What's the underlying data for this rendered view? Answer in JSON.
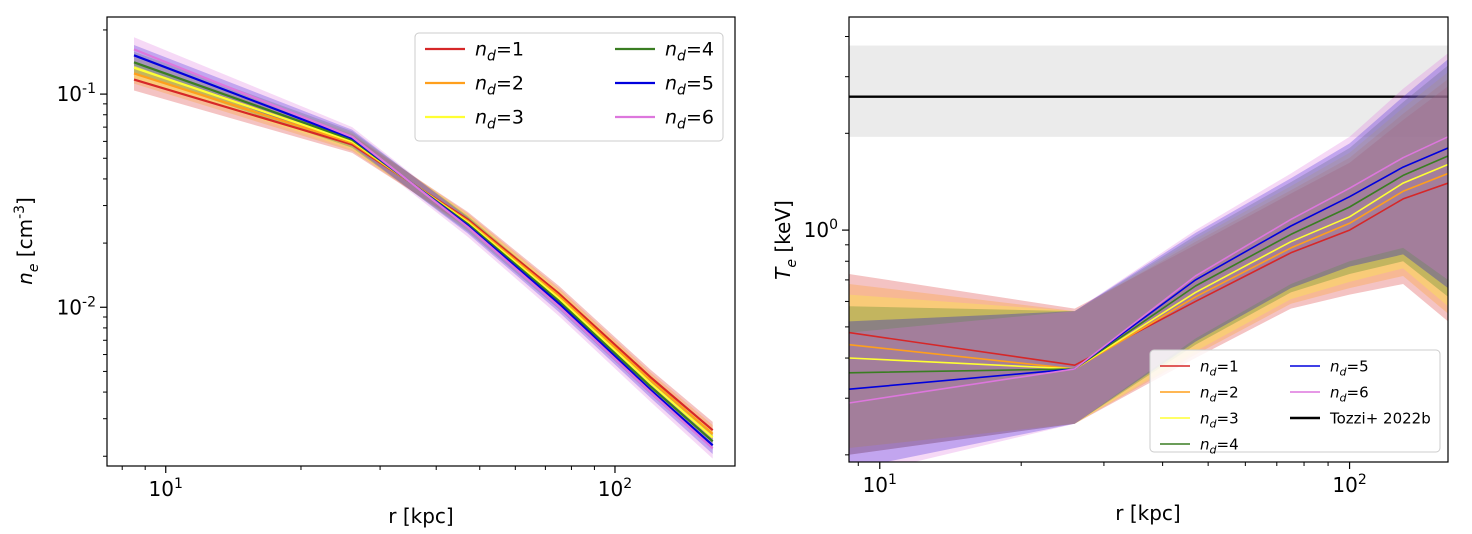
{
  "chart_data": [
    {
      "type": "line",
      "xlabel": "r [kpc]",
      "ylabel": "n_e [cm^-3]",
      "xscale": "log",
      "yscale": "log",
      "xlim": [
        7.4,
        185
      ],
      "ylim": [
        0.0018,
        0.23
      ],
      "xticks": [
        {
          "value": 10,
          "label": "10^1"
        },
        {
          "value": 100,
          "label": "10^2"
        }
      ],
      "yticks": [
        {
          "value": 0.1,
          "label": "10^-1"
        },
        {
          "value": 0.01,
          "label": "10^-2"
        }
      ],
      "grid": false,
      "legend": {
        "placement": "top-right",
        "columns": 2
      },
      "x": [
        8.5,
        26,
        47,
        75,
        120,
        165
      ],
      "series": [
        {
          "name": "n_d=1",
          "color": "#d62728",
          "values": [
            0.117,
            0.058,
            0.0258,
            0.0116,
            0.0047,
            0.00265
          ],
          "band_low": [
            0.104,
            0.053,
            0.0238,
            0.0107,
            0.0043,
            0.00242
          ],
          "band_high": [
            0.131,
            0.064,
            0.028,
            0.0126,
            0.0051,
            0.0029
          ]
        },
        {
          "name": "n_d=2",
          "color": "#ff9f1c",
          "values": [
            0.125,
            0.059,
            0.0254,
            0.0113,
            0.00455,
            0.00255
          ],
          "band_low": [
            0.112,
            0.054,
            0.0234,
            0.0104,
            0.00418,
            0.00233
          ],
          "band_high": [
            0.14,
            0.065,
            0.0276,
            0.0123,
            0.00495,
            0.0028
          ]
        },
        {
          "name": "n_d=3",
          "color": "#ffff33",
          "values": [
            0.133,
            0.06,
            0.025,
            0.011,
            0.0044,
            0.00245
          ],
          "band_low": [
            0.119,
            0.055,
            0.023,
            0.0101,
            0.00404,
            0.00224
          ],
          "band_high": [
            0.149,
            0.066,
            0.0272,
            0.012,
            0.0048,
            0.00268
          ]
        },
        {
          "name": "n_d=4",
          "color": "#3a7d22",
          "values": [
            0.141,
            0.061,
            0.0246,
            0.0107,
            0.00425,
            0.00235
          ],
          "band_low": [
            0.126,
            0.056,
            0.0226,
            0.0098,
            0.0039,
            0.00215
          ],
          "band_high": [
            0.158,
            0.067,
            0.0268,
            0.0117,
            0.00465,
            0.00258
          ]
        },
        {
          "name": "n_d=5",
          "color": "#0000dd",
          "values": [
            0.152,
            0.062,
            0.0242,
            0.0104,
            0.0041,
            0.00225
          ],
          "band_low": [
            0.136,
            0.057,
            0.0222,
            0.0095,
            0.00376,
            0.00205
          ],
          "band_high": [
            0.17,
            0.068,
            0.0264,
            0.0114,
            0.0045,
            0.00248
          ]
        },
        {
          "name": "n_d=6",
          "color": "#dd77dd",
          "values": [
            0.162,
            0.063,
            0.0238,
            0.0101,
            0.004,
            0.00218
          ],
          "band_low": [
            0.142,
            0.057,
            0.0214,
            0.0091,
            0.0036,
            0.00195
          ],
          "band_high": [
            0.185,
            0.07,
            0.0262,
            0.0112,
            0.00442,
            0.00244
          ]
        }
      ]
    },
    {
      "type": "line",
      "xlabel": "r [kpc]",
      "ylabel": "T_e [keV]",
      "xscale": "log",
      "yscale": "log",
      "xlim": [
        8.6,
        162
      ],
      "ylim": [
        0.19,
        4.6
      ],
      "xticks": [
        {
          "value": 10,
          "label": "10^1"
        },
        {
          "value": 100,
          "label": "10^2"
        }
      ],
      "yticks": [
        {
          "value": 1,
          "label": "10^0"
        }
      ],
      "grid": false,
      "legend": {
        "placement": "bottom-right",
        "columns": 2
      },
      "x": [
        8.6,
        26,
        47,
        75,
        100,
        130,
        162
      ],
      "reference": {
        "name": "Tozzi+ 2022b",
        "color": "#000000",
        "value": 2.6,
        "band_low": 1.95,
        "band_high": 3.75
      },
      "series": [
        {
          "name": "n_d=1",
          "color": "#d62728",
          "values": [
            0.48,
            0.38,
            0.6,
            0.85,
            1.0,
            1.25,
            1.4
          ],
          "band_low": [
            0.2,
            0.25,
            0.4,
            0.57,
            0.63,
            0.68,
            0.52
          ],
          "band_high": [
            0.73,
            0.57,
            0.9,
            1.3,
            1.62,
            2.2,
            2.8
          ]
        },
        {
          "name": "n_d=2",
          "color": "#ff9f1c",
          "values": [
            0.44,
            0.37,
            0.62,
            0.88,
            1.05,
            1.32,
            1.5
          ],
          "band_low": [
            0.21,
            0.25,
            0.41,
            0.59,
            0.66,
            0.72,
            0.55
          ],
          "band_high": [
            0.68,
            0.56,
            0.92,
            1.33,
            1.68,
            2.3,
            2.95
          ]
        },
        {
          "name": "n_d=3",
          "color": "#ffff33",
          "values": [
            0.4,
            0.37,
            0.64,
            0.92,
            1.1,
            1.4,
            1.6
          ],
          "band_low": [
            0.21,
            0.25,
            0.42,
            0.61,
            0.69,
            0.76,
            0.58
          ],
          "band_high": [
            0.63,
            0.56,
            0.94,
            1.37,
            1.74,
            2.4,
            3.1
          ]
        },
        {
          "name": "n_d=4",
          "color": "#3a7d22",
          "values": [
            0.36,
            0.37,
            0.67,
            0.97,
            1.18,
            1.48,
            1.7
          ],
          "band_low": [
            0.2,
            0.25,
            0.44,
            0.64,
            0.73,
            0.8,
            0.62
          ],
          "band_high": [
            0.58,
            0.56,
            0.96,
            1.41,
            1.8,
            2.5,
            3.25
          ]
        },
        {
          "name": "n_d=5",
          "color": "#0000dd",
          "values": [
            0.32,
            0.37,
            0.7,
            1.03,
            1.27,
            1.57,
            1.8
          ],
          "band_low": [
            0.18,
            0.25,
            0.45,
            0.66,
            0.77,
            0.84,
            0.66
          ],
          "band_high": [
            0.52,
            0.56,
            0.98,
            1.45,
            1.86,
            2.6,
            3.4
          ]
        },
        {
          "name": "n_d=6",
          "color": "#dd77dd",
          "values": [
            0.29,
            0.37,
            0.72,
            1.08,
            1.35,
            1.68,
            1.95
          ],
          "band_low": [
            0.17,
            0.25,
            0.46,
            0.68,
            0.8,
            0.88,
            0.7
          ],
          "band_high": [
            0.48,
            0.56,
            1.0,
            1.5,
            1.95,
            2.75,
            3.55
          ]
        }
      ]
    }
  ]
}
